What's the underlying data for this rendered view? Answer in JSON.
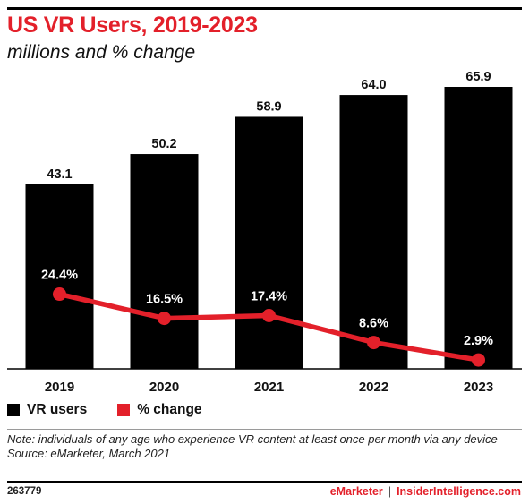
{
  "title": "US VR Users, 2019-2023",
  "subtitle": "millions and % change",
  "legend": {
    "bar_label": "VR users",
    "line_label": "% change"
  },
  "note": "Note: individuals of any age who experience VR content at least once per month via any device",
  "source": "Source: eMarketer, March 2021",
  "footer": {
    "chart_id": "263779",
    "brand_left": "eMarketer",
    "separator": "|",
    "brand_right": "InsiderIntelligence.com"
  },
  "colors": {
    "bar": "#000000",
    "line": "#e3202a",
    "title": "#e3202a"
  },
  "chart_data": {
    "type": "bar",
    "categories": [
      "2019",
      "2020",
      "2021",
      "2022",
      "2023"
    ],
    "series": [
      {
        "name": "VR users",
        "type": "bar",
        "values": [
          43.1,
          50.2,
          58.9,
          64.0,
          65.9
        ],
        "labels": [
          "43.1",
          "50.2",
          "58.9",
          "64.0",
          "65.9"
        ]
      },
      {
        "name": "% change",
        "type": "line",
        "values": [
          24.4,
          16.5,
          17.4,
          8.6,
          2.9
        ],
        "labels": [
          "24.4%",
          "16.5%",
          "17.4%",
          "8.6%",
          "2.9%"
        ]
      }
    ],
    "title": "US VR Users, 2019-2023",
    "subtitle": "millions and % change",
    "legend_position": "bottom-left"
  }
}
